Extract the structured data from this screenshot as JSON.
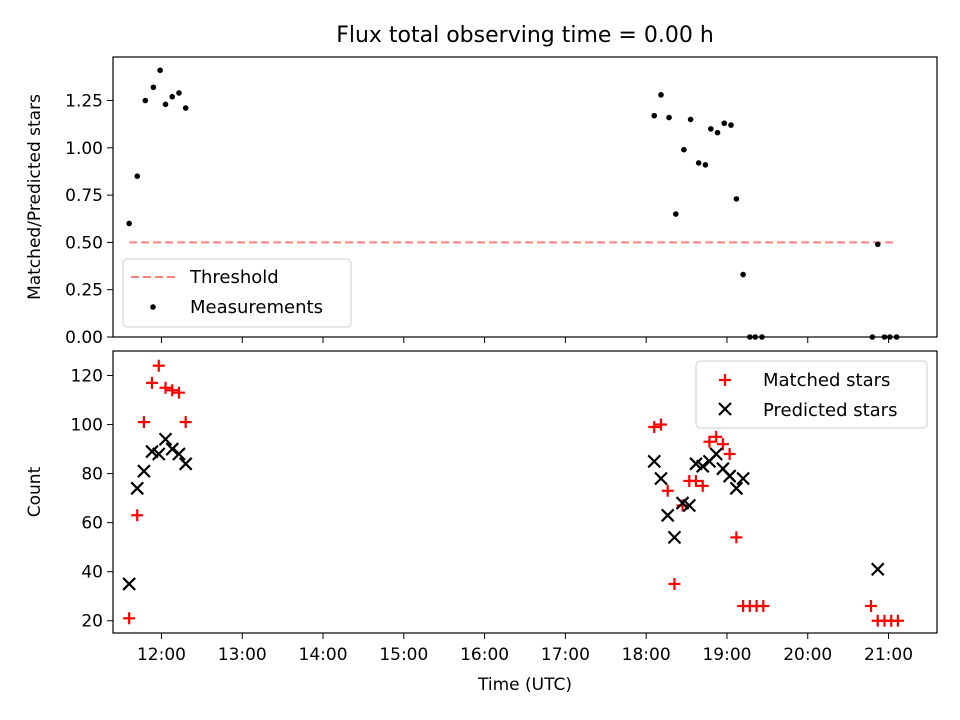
{
  "chart_data": [
    {
      "type": "scatter",
      "title": "Flux total observing time = 0.00 h",
      "xlabel": "",
      "ylabel": "Matched/Predicted stars",
      "xlim": [
        "11:24",
        "21:36"
      ],
      "ylim": [
        0,
        1.48
      ],
      "yticks": [
        "0.00",
        "0.25",
        "0.50",
        "0.75",
        "1.00",
        "1.25"
      ],
      "legend_position": "lower-left",
      "threshold": {
        "name": "Threshold",
        "y": 0.5,
        "x_range": [
          "11:36",
          "21:06"
        ],
        "color": "#ff7f7f",
        "style": "dashed"
      },
      "series": [
        {
          "name": "Measurements",
          "color": "#000000",
          "marker": "dot",
          "points": [
            {
              "x": "11:36",
              "y": 0.6
            },
            {
              "x": "11:42",
              "y": 0.85
            },
            {
              "x": "11:48",
              "y": 1.25
            },
            {
              "x": "11:54",
              "y": 1.32
            },
            {
              "x": "11:59",
              "y": 1.41
            },
            {
              "x": "12:03",
              "y": 1.23
            },
            {
              "x": "12:08",
              "y": 1.27
            },
            {
              "x": "12:13",
              "y": 1.29
            },
            {
              "x": "12:18",
              "y": 1.21
            },
            {
              "x": "18:06",
              "y": 1.17
            },
            {
              "x": "18:11",
              "y": 1.28
            },
            {
              "x": "18:17",
              "y": 1.16
            },
            {
              "x": "18:22",
              "y": 0.65
            },
            {
              "x": "18:28",
              "y": 0.99
            },
            {
              "x": "18:33",
              "y": 1.15
            },
            {
              "x": "18:39",
              "y": 0.92
            },
            {
              "x": "18:44",
              "y": 0.91
            },
            {
              "x": "18:48",
              "y": 1.1
            },
            {
              "x": "18:53",
              "y": 1.08
            },
            {
              "x": "18:58",
              "y": 1.13
            },
            {
              "x": "19:03",
              "y": 1.12
            },
            {
              "x": "19:07",
              "y": 0.73
            },
            {
              "x": "19:12",
              "y": 0.33
            },
            {
              "x": "19:17",
              "y": 0.0
            },
            {
              "x": "19:21",
              "y": 0.0
            },
            {
              "x": "19:26",
              "y": 0.0
            },
            {
              "x": "20:48",
              "y": 0.0
            },
            {
              "x": "20:52",
              "y": 0.49
            },
            {
              "x": "20:57",
              "y": 0.0
            },
            {
              "x": "21:01",
              "y": 0.0
            },
            {
              "x": "21:06",
              "y": 0.0
            }
          ]
        }
      ]
    },
    {
      "type": "scatter",
      "title": "",
      "xlabel": "Time (UTC)",
      "ylabel": "Count",
      "xlim": [
        "11:24",
        "21:36"
      ],
      "ylim": [
        15,
        130
      ],
      "yticks": [
        "20",
        "40",
        "60",
        "80",
        "100",
        "120"
      ],
      "xticks": [
        "12:00",
        "13:00",
        "14:00",
        "15:00",
        "16:00",
        "17:00",
        "18:00",
        "19:00",
        "20:00",
        "21:00"
      ],
      "legend_position": "top-right",
      "series": [
        {
          "name": "Matched stars",
          "color": "#ff0000",
          "marker": "plus",
          "points": [
            {
              "x": "11:36",
              "y": 21
            },
            {
              "x": "11:42",
              "y": 63
            },
            {
              "x": "11:47",
              "y": 101
            },
            {
              "x": "11:53",
              "y": 117
            },
            {
              "x": "11:58",
              "y": 124
            },
            {
              "x": "12:03",
              "y": 115
            },
            {
              "x": "12:08",
              "y": 114
            },
            {
              "x": "12:13",
              "y": 113
            },
            {
              "x": "12:18",
              "y": 101
            },
            {
              "x": "18:06",
              "y": 99
            },
            {
              "x": "18:11",
              "y": 100
            },
            {
              "x": "18:16",
              "y": 73
            },
            {
              "x": "18:21",
              "y": 35
            },
            {
              "x": "18:27",
              "y": 67
            },
            {
              "x": "18:32",
              "y": 77
            },
            {
              "x": "18:37",
              "y": 77
            },
            {
              "x": "18:42",
              "y": 75
            },
            {
              "x": "18:47",
              "y": 93
            },
            {
              "x": "18:52",
              "y": 95
            },
            {
              "x": "18:57",
              "y": 92
            },
            {
              "x": "19:02",
              "y": 88
            },
            {
              "x": "19:07",
              "y": 54
            },
            {
              "x": "19:12",
              "y": 26
            },
            {
              "x": "19:17",
              "y": 26
            },
            {
              "x": "19:22",
              "y": 26
            },
            {
              "x": "19:27",
              "y": 26
            },
            {
              "x": "20:47",
              "y": 26
            },
            {
              "x": "20:52",
              "y": 20
            },
            {
              "x": "20:57",
              "y": 20
            },
            {
              "x": "21:02",
              "y": 20
            },
            {
              "x": "21:07",
              "y": 20
            }
          ]
        },
        {
          "name": "Predicted stars",
          "color": "#000000",
          "marker": "x",
          "points": [
            {
              "x": "11:36",
              "y": 35
            },
            {
              "x": "11:42",
              "y": 74
            },
            {
              "x": "11:47",
              "y": 81
            },
            {
              "x": "11:53",
              "y": 89
            },
            {
              "x": "11:58",
              "y": 88
            },
            {
              "x": "12:03",
              "y": 94
            },
            {
              "x": "12:08",
              "y": 90
            },
            {
              "x": "12:13",
              "y": 88
            },
            {
              "x": "12:18",
              "y": 84
            },
            {
              "x": "18:06",
              "y": 85
            },
            {
              "x": "18:11",
              "y": 78
            },
            {
              "x": "18:16",
              "y": 63
            },
            {
              "x": "18:21",
              "y": 54
            },
            {
              "x": "18:27",
              "y": 68
            },
            {
              "x": "18:32",
              "y": 67
            },
            {
              "x": "18:37",
              "y": 84
            },
            {
              "x": "18:42",
              "y": 83
            },
            {
              "x": "18:47",
              "y": 85
            },
            {
              "x": "18:52",
              "y": 88
            },
            {
              "x": "18:57",
              "y": 82
            },
            {
              "x": "19:02",
              "y": 79
            },
            {
              "x": "19:07",
              "y": 74
            },
            {
              "x": "19:12",
              "y": 78
            },
            {
              "x": "20:52",
              "y": 41
            }
          ]
        }
      ]
    }
  ]
}
